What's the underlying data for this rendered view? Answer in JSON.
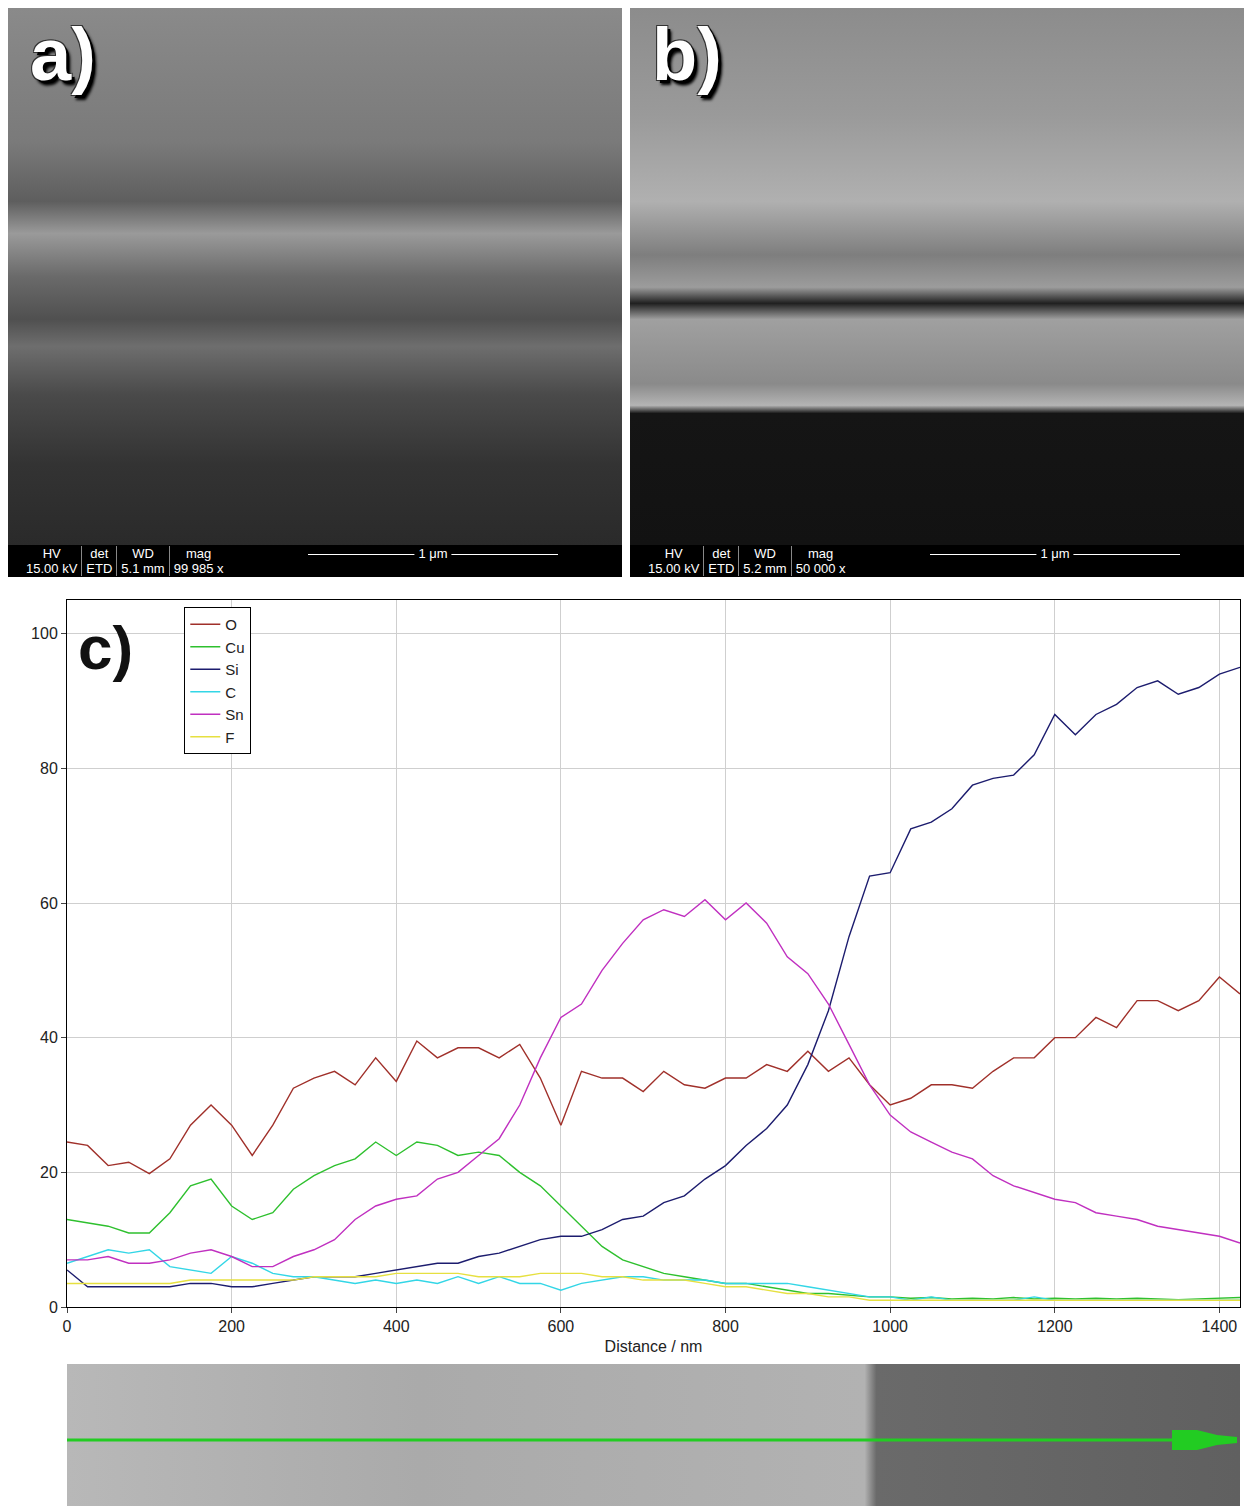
{
  "panels": [
    {
      "panel_label": "a)",
      "info": {
        "headers": [
          "HV",
          "det",
          "WD",
          "mag"
        ],
        "values": [
          "15.00 kV",
          "ETD",
          "5.1 mm",
          "99 985 x"
        ]
      },
      "scale_bar": "1 μm"
    },
    {
      "panel_label": "b)",
      "info": {
        "headers": [
          "HV",
          "det",
          "WD",
          "mag"
        ],
        "values": [
          "15.00 kV",
          "ETD",
          "5.2 mm",
          "50 000 x"
        ]
      },
      "scale_bar": "1 μm"
    }
  ],
  "chart_data": {
    "type": "line",
    "panel_label": "c)",
    "x_label": "Distance / nm",
    "x": [
      0,
      25,
      50,
      75,
      100,
      125,
      150,
      175,
      200,
      225,
      250,
      275,
      300,
      325,
      350,
      375,
      400,
      425,
      450,
      475,
      500,
      525,
      550,
      575,
      600,
      625,
      650,
      675,
      700,
      725,
      750,
      775,
      800,
      825,
      850,
      875,
      900,
      925,
      950,
      975,
      1000,
      1025,
      1050,
      1075,
      1100,
      1125,
      1150,
      1175,
      1200,
      1225,
      1250,
      1275,
      1300,
      1325,
      1350,
      1375,
      1400,
      1425
    ],
    "series": [
      {
        "name": "O",
        "color": "#a0302a",
        "values": [
          24.5,
          24,
          21,
          21.5,
          19.8,
          22,
          27,
          30,
          27,
          22.5,
          27,
          32.5,
          34,
          35,
          33,
          37,
          33.5,
          39.5,
          37,
          38.5,
          38.5,
          37,
          39,
          34,
          27,
          35,
          34,
          34,
          32,
          35,
          33,
          32.5,
          34,
          34,
          36,
          35,
          38,
          35,
          37,
          33,
          30,
          31,
          33,
          33,
          32.5,
          35,
          37,
          37,
          40,
          40,
          43,
          41.5,
          45.5,
          45.5,
          44,
          45.5,
          49,
          46.5
        ]
      },
      {
        "name": "Cu",
        "color": "#2ec02e",
        "values": [
          13,
          12.5,
          12,
          11,
          11,
          14,
          18,
          19,
          15,
          13,
          14,
          17.5,
          19.5,
          21,
          22,
          24.5,
          22.5,
          24.5,
          24,
          22.5,
          23,
          22.5,
          20,
          18,
          15,
          12,
          9,
          7,
          6,
          5,
          4.5,
          4,
          3.5,
          3.5,
          3,
          2.5,
          2,
          2,
          1.7,
          1.5,
          1.5,
          1.3,
          1.4,
          1.2,
          1.3,
          1.2,
          1.4,
          1.2,
          1.3,
          1.2,
          1.3,
          1.2,
          1.3,
          1.2,
          1.1,
          1.2,
          1.3,
          1.4
        ]
      },
      {
        "name": "Si",
        "color": "#1c1c6e",
        "values": [
          5.5,
          3,
          3,
          3,
          3,
          3,
          3.5,
          3.5,
          3,
          3,
          3.5,
          4,
          4.5,
          4.5,
          4.5,
          5,
          5.5,
          6,
          6.5,
          6.5,
          7.5,
          8,
          9,
          10,
          10.5,
          10.5,
          11.5,
          13,
          13.5,
          15.5,
          16.5,
          19,
          21,
          24,
          26.5,
          30,
          36,
          44,
          55,
          64,
          64.5,
          71,
          72,
          74,
          77.5,
          78.5,
          79,
          82,
          88,
          85,
          88,
          89.5,
          92,
          93,
          91,
          92,
          94,
          95
        ]
      },
      {
        "name": "C",
        "color": "#33d6e6",
        "values": [
          6.5,
          7.5,
          8.5,
          8,
          8.5,
          6,
          5.5,
          5,
          7.5,
          6.5,
          5,
          4.5,
          4.5,
          4,
          3.5,
          4,
          3.5,
          4,
          3.5,
          4.5,
          3.5,
          4.5,
          3.5,
          3.5,
          2.5,
          3.5,
          4,
          4.5,
          4.5,
          4,
          4,
          4,
          3.5,
          3.5,
          3.5,
          3.5,
          3,
          2.5,
          2,
          1.5,
          1.5,
          1,
          1.5,
          1,
          1,
          1,
          1,
          1.5,
          1,
          1,
          1,
          1,
          1,
          1,
          1,
          1,
          1,
          1
        ]
      },
      {
        "name": "Sn",
        "color": "#c030c0",
        "values": [
          7,
          7,
          7.5,
          6.5,
          6.5,
          7,
          8,
          8.5,
          7.5,
          6,
          6,
          7.5,
          8.5,
          10,
          13,
          15,
          16,
          16.5,
          19,
          20,
          22.5,
          25,
          30,
          37,
          43,
          45,
          50,
          54,
          57.5,
          59,
          58,
          60.5,
          57.5,
          60,
          57,
          52,
          49.5,
          45,
          39,
          33,
          28.5,
          26,
          24.5,
          23,
          22,
          19.5,
          18,
          17,
          16,
          15.5,
          14,
          13.5,
          13,
          12,
          11.5,
          11,
          10.5,
          9.5
        ]
      },
      {
        "name": "F",
        "color": "#e6e040",
        "values": [
          3.5,
          3.5,
          3.5,
          3.5,
          3.5,
          3.5,
          4,
          4,
          4,
          4,
          4,
          4,
          4.5,
          4.5,
          4.5,
          4.5,
          5,
          5,
          5,
          5,
          4.5,
          4.5,
          4.5,
          5,
          5,
          5,
          4.5,
          4.5,
          4,
          4,
          4,
          3.5,
          3,
          3,
          2.5,
          2,
          2,
          1.5,
          1.5,
          1,
          1,
          1,
          1,
          1,
          1,
          1,
          1,
          1,
          1,
          1,
          1,
          1,
          1,
          1,
          1,
          1,
          1,
          1
        ]
      }
    ],
    "xlim": [
      0,
      1425
    ],
    "xticks": [
      0,
      200,
      400,
      600,
      800,
      1000,
      1200,
      1400
    ],
    "ylim": [
      0,
      105
    ],
    "yticks": [
      0,
      20,
      40,
      60,
      80,
      100
    ],
    "grid": true,
    "legend": "top left"
  }
}
